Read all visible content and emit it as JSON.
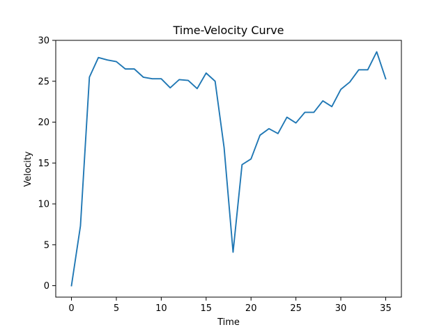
{
  "chart_data": {
    "type": "line",
    "title": "Time-Velocity Curve",
    "xlabel": "Time",
    "ylabel": "Velocity",
    "xlim": [
      -1.75,
      36.75
    ],
    "ylim": [
      -1.4,
      30
    ],
    "xticks": [
      0,
      5,
      10,
      15,
      20,
      25,
      30,
      35
    ],
    "yticks": [
      0,
      5,
      10,
      15,
      20,
      25,
      30
    ],
    "grid": false,
    "line_color": "#1f77b4",
    "series": [
      {
        "x": [
          0,
          1,
          2,
          3,
          4,
          5,
          6,
          7,
          8,
          9,
          10,
          11,
          12,
          13,
          14,
          15,
          16,
          17,
          18,
          19,
          20,
          21,
          22,
          23,
          24,
          25,
          26,
          27,
          28,
          29,
          30,
          31,
          32,
          33,
          34,
          35
        ],
        "values": [
          0.0,
          7.3,
          25.5,
          27.9,
          27.6,
          27.4,
          26.5,
          26.5,
          25.5,
          25.3,
          25.3,
          24.2,
          25.2,
          25.1,
          24.1,
          26.0,
          25.0,
          16.9,
          4.1,
          14.8,
          15.5,
          18.4,
          19.2,
          18.6,
          20.6,
          19.9,
          21.2,
          21.2,
          22.6,
          21.9,
          24.0,
          24.9,
          26.4,
          26.4,
          28.6,
          25.3
        ]
      }
    ]
  }
}
